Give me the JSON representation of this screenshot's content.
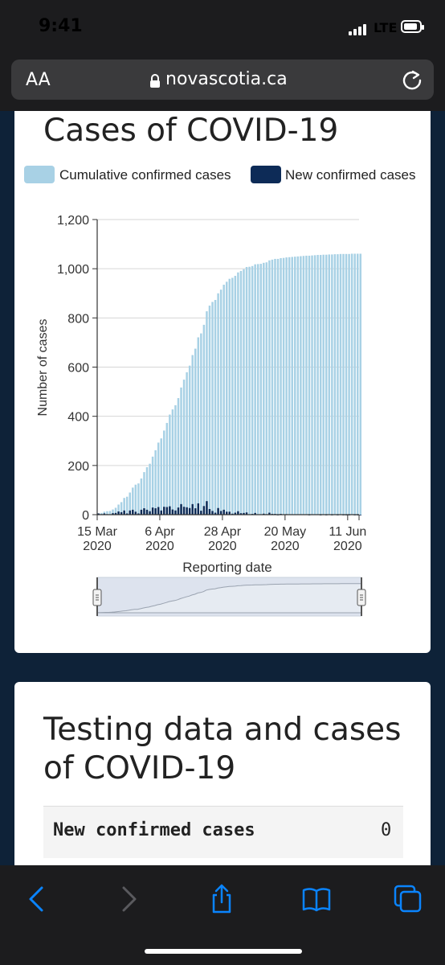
{
  "status": {
    "time": "9:41",
    "network": "LTE"
  },
  "browser": {
    "text_size_label": "AA",
    "url": "novascotia.ca"
  },
  "colors": {
    "cumulative": "#a8d1e5",
    "new": "#0d2b57",
    "page_bg": "#0e2238"
  },
  "card1": {
    "title": "Cases of COVID-19"
  },
  "legend": {
    "cumulative": "Cumulative confirmed cases",
    "new": "New confirmed cases"
  },
  "card2": {
    "title": "Testing data and cases of COVID-19",
    "row_label": "New confirmed cases",
    "row_value": "0"
  },
  "icons": [
    "back-icon",
    "forward-icon",
    "share-icon",
    "bookmarks-icon",
    "tabs-icon",
    "lock-icon",
    "reload-icon",
    "range-handle-icon"
  ],
  "chart_data": {
    "type": "bar",
    "ylabel": "Number of cases",
    "xlabel": "Reporting date",
    "ylim": [
      0,
      1200
    ],
    "y_ticks": [
      "0",
      "200",
      "400",
      "600",
      "800",
      "1,000",
      "1,200"
    ],
    "x_ticks": [
      {
        "line1": "15 Mar",
        "line2": "2020"
      },
      {
        "line1": "6 Apr",
        "line2": "2020"
      },
      {
        "line1": "28 Apr",
        "line2": "2020"
      },
      {
        "line1": "20 May",
        "line2": "2020"
      },
      {
        "line1": "11 Jun",
        "line2": "2020"
      }
    ],
    "x_start": "2020-03-15",
    "x_end": "2020-06-15",
    "grid": true,
    "series": [
      {
        "name": "Cumulative confirmed cases",
        "values": [
          5,
          7,
          12,
          14,
          15,
          21,
          28,
          41,
          51,
          68,
          73,
          90,
          110,
          122,
          127,
          147,
          173,
          193,
          207,
          236,
          262,
          293,
          310,
          342,
          373,
          407,
          428,
          445,
          474,
          517,
          549,
          579,
          606,
          649,
          675,
          721,
          737,
          772,
          827,
          850,
          865,
          873,
          900,
          915,
          935,
          947,
          959,
          963,
          971,
          985,
          991,
          998,
          1007,
          1008,
          1011,
          1018,
          1019,
          1020,
          1024,
          1026,
          1034,
          1037,
          1040,
          1040,
          1043,
          1044,
          1046,
          1047,
          1048,
          1049,
          1050,
          1051,
          1052,
          1053,
          1053,
          1054,
          1055,
          1056,
          1056,
          1057,
          1057,
          1058,
          1058,
          1059,
          1059,
          1060,
          1060,
          1060,
          1060,
          1061,
          1061,
          1061,
          1061
        ]
      },
      {
        "name": "New confirmed cases",
        "values": [
          5,
          2,
          5,
          2,
          1,
          6,
          7,
          13,
          10,
          17,
          5,
          17,
          20,
          12,
          5,
          20,
          26,
          20,
          14,
          29,
          26,
          31,
          17,
          32,
          31,
          34,
          21,
          17,
          29,
          43,
          32,
          30,
          27,
          43,
          26,
          46,
          16,
          35,
          55,
          23,
          15,
          8,
          27,
          15,
          20,
          12,
          12,
          4,
          8,
          14,
          6,
          7,
          9,
          1,
          3,
          7,
          1,
          1,
          4,
          2,
          8,
          3,
          3,
          0,
          3,
          1,
          2,
          1,
          1,
          1,
          1,
          1,
          1,
          1,
          0,
          1,
          1,
          1,
          0,
          1,
          0,
          1,
          0,
          1,
          0,
          1,
          0,
          0,
          0,
          1,
          0,
          0,
          0
        ]
      }
    ]
  }
}
